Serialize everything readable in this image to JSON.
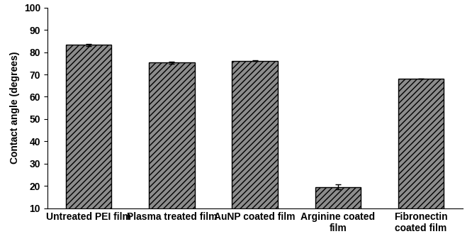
{
  "chart_data": {
    "type": "bar",
    "y_label": "Contact angle (degrees)",
    "categories": [
      "Untreated PEI film",
      "Plasma treated film",
      "AuNP coated film",
      "Arginine coated\nfilm",
      "Fibronectin\ncoated film"
    ],
    "values": [
      83.2,
      75.3,
      76.1,
      19.6,
      68.1
    ],
    "errors": [
      0.4,
      0.5,
      0.2,
      1.2,
      0.1
    ],
    "color": "#8c8c8c",
    "ylim": [
      10,
      100
    ],
    "yticks": [
      10,
      20,
      30,
      40,
      50,
      60,
      70,
      80,
      90,
      100
    ],
    "grid": false
  }
}
